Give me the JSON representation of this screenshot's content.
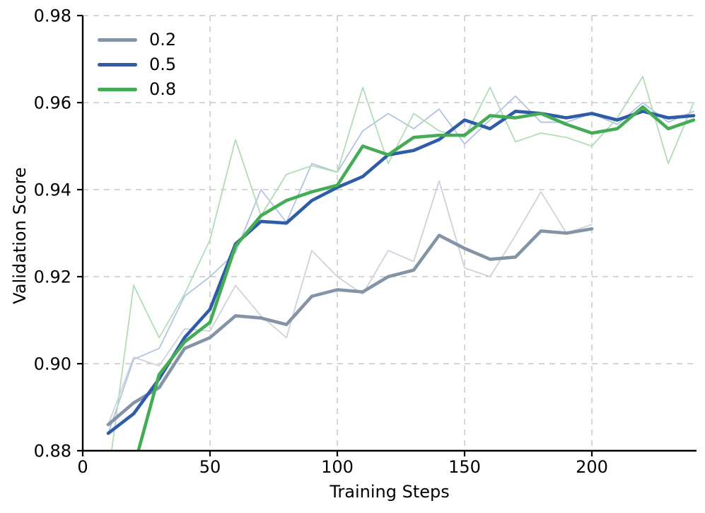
{
  "chart_data": {
    "type": "line",
    "title": "",
    "xlabel": "Training Steps",
    "ylabel": "Validation Score",
    "xlim": [
      0,
      241
    ],
    "ylim": [
      0.88,
      0.98
    ],
    "grid": "dashed",
    "grid_color": "#c9c9c9",
    "spine_color": "#000000",
    "text_color": "#000000",
    "legend_position": "upper-left",
    "x_ticks": [
      {
        "value": 0,
        "label": "0"
      },
      {
        "value": 50,
        "label": "50"
      },
      {
        "value": 100,
        "label": "100"
      },
      {
        "value": 150,
        "label": "150"
      },
      {
        "value": 200,
        "label": "200"
      }
    ],
    "y_ticks": [
      {
        "value": 0.88,
        "label": "0.88"
      },
      {
        "value": 0.9,
        "label": "0.90"
      },
      {
        "value": 0.92,
        "label": "0.92"
      },
      {
        "value": 0.94,
        "label": "0.94"
      },
      {
        "value": 0.96,
        "label": "0.96"
      },
      {
        "value": 0.98,
        "label": "0.98"
      }
    ],
    "series": [
      {
        "name": "0.2",
        "color": "#8494a6",
        "raw_color": "#cdd3dc",
        "steps": [
          10,
          20,
          30,
          40,
          50,
          60,
          70,
          80,
          90,
          100,
          110,
          120,
          130,
          140,
          150,
          160,
          170,
          180,
          190,
          200
        ],
        "raw": [
          0.886,
          0.9015,
          0.8995,
          0.908,
          0.9075,
          0.918,
          0.911,
          0.906,
          0.926,
          0.92,
          0.916,
          0.926,
          0.9235,
          0.942,
          0.922,
          0.92,
          0.9295,
          0.9395,
          0.93,
          0.932
        ],
        "smoothed": [
          0.886,
          0.891,
          0.8945,
          0.9035,
          0.906,
          0.911,
          0.9105,
          0.909,
          0.9155,
          0.917,
          0.9165,
          0.92,
          0.9215,
          0.9295,
          0.9265,
          0.924,
          0.9245,
          0.9305,
          0.93,
          0.931
        ]
      },
      {
        "name": "0.5",
        "color": "#2e5ca6",
        "raw_color": "#b3c3e2",
        "steps": [
          10,
          20,
          30,
          40,
          50,
          60,
          70,
          80,
          90,
          100,
          110,
          120,
          130,
          140,
          150,
          160,
          170,
          180,
          190,
          200,
          210,
          220,
          230,
          240
        ],
        "raw": [
          0.884,
          0.901,
          0.9035,
          0.9155,
          0.92,
          0.9255,
          0.94,
          0.9325,
          0.946,
          0.944,
          0.9535,
          0.9575,
          0.954,
          0.9585,
          0.9505,
          0.956,
          0.9615,
          0.9555,
          0.9555,
          0.9575,
          0.955,
          0.96,
          0.9555,
          0.958
        ],
        "smoothed": [
          0.884,
          0.8885,
          0.8965,
          0.906,
          0.9125,
          0.9275,
          0.9327,
          0.9323,
          0.9375,
          0.9405,
          0.943,
          0.948,
          0.949,
          0.9515,
          0.956,
          0.954,
          0.958,
          0.9575,
          0.9565,
          0.9575,
          0.956,
          0.958,
          0.9565,
          0.957
        ]
      },
      {
        "name": "0.8",
        "color": "#45ac56",
        "raw_color": "#b2dcb9",
        "steps": [
          10,
          20,
          30,
          40,
          50,
          60,
          70,
          80,
          90,
          100,
          110,
          120,
          130,
          140,
          150,
          160,
          170,
          180,
          190,
          200,
          210,
          220,
          230,
          240
        ],
        "raw": [
          0.874,
          0.918,
          0.906,
          0.916,
          0.9285,
          0.9515,
          0.934,
          0.9435,
          0.9455,
          0.944,
          0.9635,
          0.946,
          0.9575,
          0.9535,
          0.952,
          0.9635,
          0.951,
          0.953,
          0.952,
          0.95,
          0.9565,
          0.966,
          0.946,
          0.96
        ],
        "smoothed": [
          0.86,
          0.876,
          0.8975,
          0.905,
          0.9095,
          0.927,
          0.934,
          0.9375,
          0.9395,
          0.941,
          0.95,
          0.948,
          0.952,
          0.9525,
          0.9525,
          0.957,
          0.9565,
          0.9575,
          0.955,
          0.953,
          0.954,
          0.959,
          0.954,
          0.956
        ]
      }
    ]
  }
}
